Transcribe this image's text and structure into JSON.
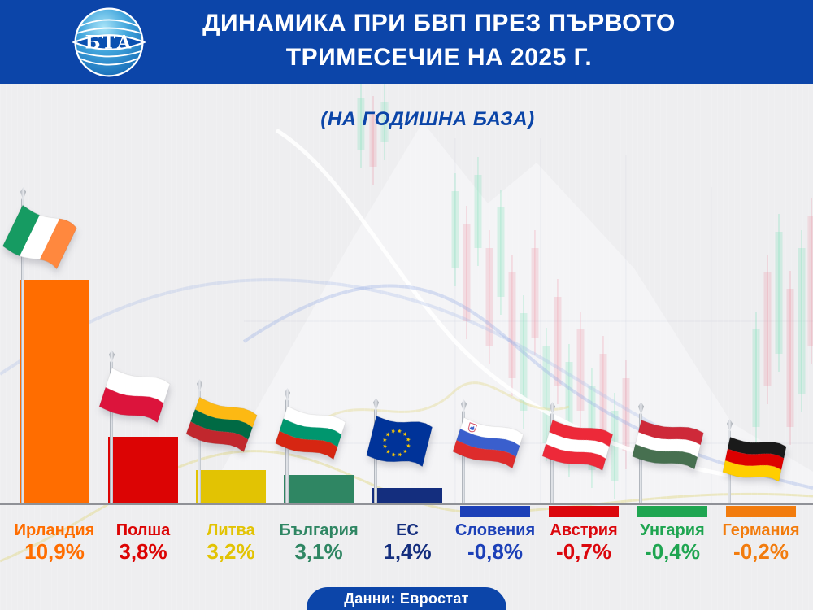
{
  "page": {
    "background": "#EEEEF0",
    "accent_blue": "#0C45A9",
    "baseline_color": "#8F9197"
  },
  "header": {
    "logo_text": "БТА",
    "title_line1": "ДИНАМИКА ПРИ БВП ПРЕЗ ПЪРВОТО",
    "title_line2": "ТРИМЕСЕЧИЕ НА 2025 Г."
  },
  "subtitle": "(НА ГОДИШНА БАЗА)",
  "footer": {
    "source": "Данни: Евростат"
  },
  "chart_data": {
    "type": "bar",
    "title": "ДИНАМИКА ПРИ БВП ПРЕЗ ПЪРВОТО ТРИМЕСЕЧИЕ НА 2025 Г.",
    "subtitle": "(НА ГОДИШНА БАЗА)",
    "source": "Данни: Евростат",
    "unit": "% (year-on-year GDP growth, Q1 2025)",
    "categories": [
      "Ирландия",
      "Полша",
      "Литва",
      "България",
      "ЕС",
      "Словения",
      "Австрия",
      "Унгария",
      "Германия"
    ],
    "values": [
      10.9,
      3.8,
      3.2,
      3.1,
      1.4,
      -0.8,
      -0.7,
      -0.4,
      -0.2
    ],
    "value_labels": [
      "10,9%",
      "3,8%",
      "3,2%",
      "3,1%",
      "1,4%",
      "-0,8%",
      "-0,7%",
      "-0,4%",
      "-0,2%"
    ],
    "bar_colors": [
      "#FF6D00",
      "#DC0404",
      "#E2C303",
      "#2F8663",
      "#142E7E",
      "#1C40B8",
      "#DB060C",
      "#1FA551",
      "#F27C0E"
    ],
    "flag_ids": [
      "ireland",
      "poland",
      "lithuania",
      "bulgaria",
      "eu",
      "slovenia",
      "austria",
      "hungary",
      "germany"
    ],
    "baseline": 0,
    "ylim": [
      -1,
      11.5
    ],
    "grid": false,
    "legend": "none"
  },
  "flags": {
    "ireland": {
      "type": "v",
      "stripes": [
        "#169B62",
        "#FFFFFF",
        "#FF883E"
      ]
    },
    "poland": {
      "type": "h",
      "stripes": [
        "#FFFFFF",
        "#DC143C"
      ]
    },
    "lithuania": {
      "type": "h",
      "stripes": [
        "#FDB913",
        "#006A44",
        "#C1272D"
      ]
    },
    "bulgaria": {
      "type": "h",
      "stripes": [
        "#FFFFFF",
        "#00966E",
        "#D62612"
      ]
    },
    "eu": {
      "type": "eu",
      "field": "#003399",
      "star": "#FFCC00"
    },
    "slovenia": {
      "type": "h",
      "stripes": [
        "#FFFFFF",
        "#3A5FCD",
        "#DE2C2C"
      ],
      "emblem": true
    },
    "austria": {
      "type": "h",
      "stripes": [
        "#ED2939",
        "#FFFFFF",
        "#ED2939"
      ]
    },
    "hungary": {
      "type": "h",
      "stripes": [
        "#CE2939",
        "#FFFFFF",
        "#477050"
      ]
    },
    "germany": {
      "type": "h",
      "stripes": [
        "#1A1A1A",
        "#DD0000",
        "#FFCE00"
      ]
    }
  }
}
